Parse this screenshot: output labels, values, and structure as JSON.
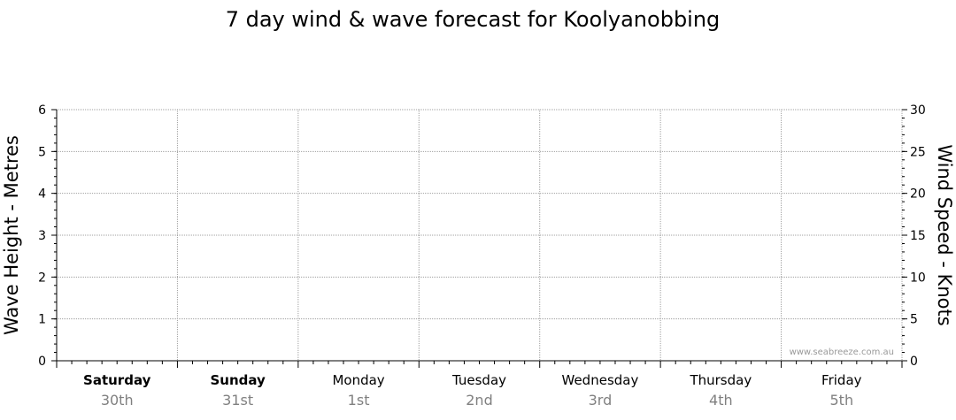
{
  "chart_data": {
    "type": "line",
    "title": "7 day wind & wave forecast for Koolyanobbing",
    "y_left": {
      "label": "Wave Height - Metres",
      "ylim": [
        0,
        6
      ],
      "ticks": [
        "0",
        "1",
        "2",
        "3",
        "4",
        "5",
        "6"
      ]
    },
    "y_right": {
      "label": "Wind Speed - Knots",
      "ylim": [
        0,
        30
      ],
      "ticks": [
        "0",
        "5",
        "10",
        "15",
        "20",
        "25",
        "30"
      ]
    },
    "days": [
      {
        "name": "Saturday",
        "date": "30th",
        "bold": true
      },
      {
        "name": "Sunday",
        "date": "31st",
        "bold": true
      },
      {
        "name": "Monday",
        "date": "1st",
        "bold": false
      },
      {
        "name": "Tuesday",
        "date": "2nd",
        "bold": false
      },
      {
        "name": "Wednesday",
        "date": "3rd",
        "bold": false
      },
      {
        "name": "Thursday",
        "date": "4th",
        "bold": false
      },
      {
        "name": "Friday",
        "date": "5th",
        "bold": false
      }
    ],
    "series": [],
    "grid": true,
    "watermark": "www.seabreeze.com.au",
    "colors": {
      "grid": "#a0a0a0",
      "axis": "#000000",
      "date_text": "#808080",
      "watermark": "#999999"
    }
  }
}
